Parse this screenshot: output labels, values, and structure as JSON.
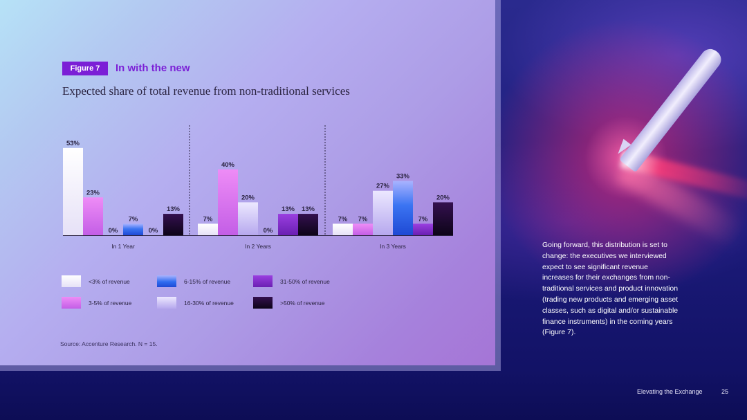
{
  "figure": {
    "badge": "Figure 7",
    "title": "In with the new",
    "subtitle": "Expected share of total revenue from non-traditional services",
    "source": "Source: Accenture Research. N = 15."
  },
  "colors": {
    "accent": "#7b1fd6",
    "series": [
      "#f3f1fb",
      "#2f6cf0",
      "#7a25c8",
      "#d57af0",
      "#c4b8f2",
      "#1a0a2c"
    ]
  },
  "chart_data": {
    "type": "bar",
    "categories": [
      "In 1 Year",
      "In 2 Years",
      "In 3 Years"
    ],
    "ylim": [
      0,
      60
    ],
    "grid": false,
    "legend_position": "bottom",
    "series": [
      {
        "name": "<3% of revenue",
        "values": [
          53,
          7,
          7
        ]
      },
      {
        "name": "3-5% of revenue",
        "values": [
          23,
          40,
          7
        ]
      },
      {
        "name": "16-30% of revenue",
        "values": [
          0,
          20,
          27
        ]
      },
      {
        "name": "6-15% of revenue",
        "values": [
          7,
          0,
          33
        ]
      },
      {
        "name": "31-50% of revenue",
        "values": [
          0,
          13,
          7
        ]
      },
      {
        "name": ">50% of revenue",
        "values": [
          13,
          13,
          20
        ]
      }
    ],
    "legend_order": [
      "<3% of revenue",
      "6-15% of revenue",
      "31-50% of revenue",
      "3-5% of revenue",
      "16-30% of revenue",
      ">50% of revenue"
    ]
  },
  "legend": [
    {
      "label": "<3% of revenue",
      "swatch": "white"
    },
    {
      "label": "6-15% of revenue",
      "swatch": "blue"
    },
    {
      "label": "31-50% of revenue",
      "swatch": "violet"
    },
    {
      "label": "3-5% of revenue",
      "swatch": "pink"
    },
    {
      "label": "16-30% of revenue",
      "swatch": "lavender"
    },
    {
      "label": ">50% of revenue",
      "swatch": "dark"
    }
  ],
  "body_text": "Going forward, this distribution is set to change: the executives we interviewed expect to see significant revenue increases for their exchanges from non-traditional services and product innovation (trading new products and emerging asset classes, such as digital and/or sustainable finance instruments) in the coming years (Figure 7).",
  "footer": {
    "title": "Elevating the Exchange",
    "page": "25"
  }
}
